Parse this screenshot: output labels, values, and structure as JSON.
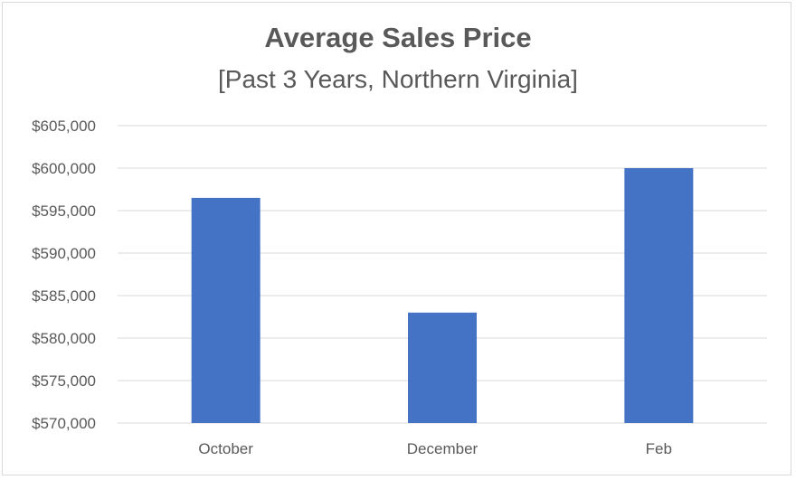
{
  "chart_data": {
    "type": "bar",
    "title": "Average Sales Price",
    "subtitle": "[Past 3 Years, Northern Virginia]",
    "categories": [
      "October",
      "December",
      "Feb"
    ],
    "values": [
      596500,
      583000,
      600000
    ],
    "ylim": [
      570000,
      605000
    ],
    "yticks": [
      570000,
      575000,
      580000,
      585000,
      590000,
      595000,
      600000,
      605000
    ],
    "ytick_labels": [
      "$570,000",
      "$575,000",
      "$580,000",
      "$585,000",
      "$590,000",
      "$595,000",
      "$600,000",
      "$605,000"
    ],
    "xlabel": "",
    "ylabel": "",
    "grid": true,
    "legend": "none",
    "bar_color": "#4472C4",
    "grid_color": "#d9d9d9"
  }
}
